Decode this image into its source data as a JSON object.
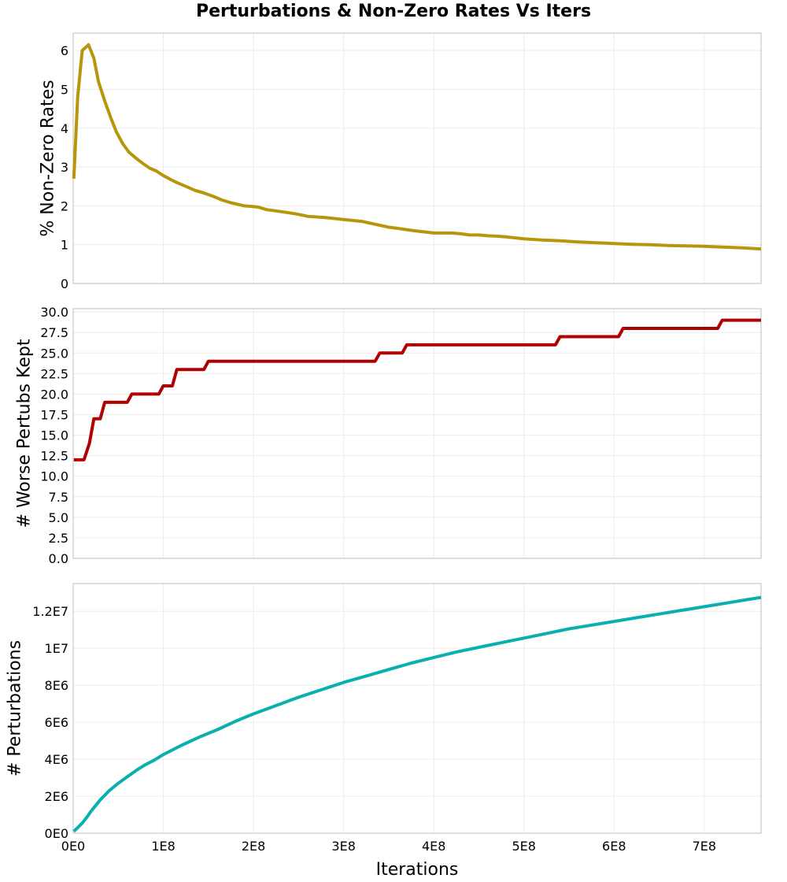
{
  "title": "Perturbations & Non-Zero Rates Vs Iters",
  "chart_data": [
    {
      "type": "line",
      "title": "Perturbations & Non-Zero Rates Vs Iters",
      "xlabel": "",
      "ylabel": "% Non-Zero Rates",
      "xlim": [
        0,
        763000000
      ],
      "ylim": [
        0,
        6.45
      ],
      "yticks": [
        0,
        1,
        2,
        3,
        4,
        5,
        6
      ],
      "ytick_labels": [
        "0",
        "1",
        "2",
        "3",
        "4",
        "5",
        "6"
      ],
      "xticks": [
        0,
        100000000,
        200000000,
        300000000,
        400000000,
        500000000,
        600000000,
        700000000
      ],
      "grid": true,
      "color": "#b8960c",
      "x": [
        700000,
        5000000,
        10000000,
        17000000,
        23000000,
        28000000,
        35000000,
        42000000,
        48000000,
        55000000,
        62000000,
        70000000,
        78000000,
        85000000,
        92000000,
        100000000,
        108000000,
        115000000,
        125000000,
        135000000,
        145000000,
        155000000,
        165000000,
        175000000,
        190000000,
        205000000,
        215000000,
        225000000,
        240000000,
        250000000,
        260000000,
        280000000,
        300000000,
        320000000,
        330000000,
        340000000,
        350000000,
        360000000,
        375000000,
        385000000,
        400000000,
        410000000,
        420000000,
        430000000,
        440000000,
        450000000,
        460000000,
        470000000,
        480000000,
        500000000,
        520000000,
        540000000,
        560000000,
        580000000,
        600000000,
        620000000,
        640000000,
        660000000,
        680000000,
        700000000,
        720000000,
        740000000,
        763000000
      ],
      "y": [
        2.7,
        4.8,
        6.0,
        6.15,
        5.8,
        5.2,
        4.7,
        4.25,
        3.9,
        3.6,
        3.38,
        3.22,
        3.08,
        2.97,
        2.9,
        2.78,
        2.68,
        2.6,
        2.5,
        2.4,
        2.33,
        2.25,
        2.15,
        2.08,
        2.0,
        1.97,
        1.9,
        1.87,
        1.82,
        1.78,
        1.73,
        1.7,
        1.65,
        1.6,
        1.55,
        1.5,
        1.45,
        1.42,
        1.37,
        1.34,
        1.3,
        1.3,
        1.3,
        1.28,
        1.25,
        1.25,
        1.23,
        1.22,
        1.2,
        1.15,
        1.12,
        1.1,
        1.07,
        1.05,
        1.03,
        1.01,
        1.0,
        0.98,
        0.97,
        0.96,
        0.94,
        0.92,
        0.89
      ]
    },
    {
      "type": "line",
      "xlabel": "",
      "ylabel": "# Worse Pertubs Kept",
      "xlim": [
        0,
        763000000
      ],
      "ylim": [
        0,
        30.4
      ],
      "yticks": [
        0,
        2.5,
        5,
        7.5,
        10,
        12.5,
        15,
        17.5,
        20,
        22.5,
        25,
        27.5,
        30
      ],
      "ytick_labels": [
        "0.0",
        "2.5",
        "5.0",
        "7.5",
        "10.0",
        "12.5",
        "15.0",
        "17.5",
        "20.0",
        "22.5",
        "25.0",
        "27.5",
        "30.0"
      ],
      "xticks": [
        0,
        100000000,
        200000000,
        300000000,
        400000000,
        500000000,
        600000000,
        700000000
      ],
      "grid": true,
      "color": "#b00000",
      "x": [
        700000,
        12000000,
        18000000,
        23000000,
        30000000,
        35000000,
        60000000,
        65000000,
        95000000,
        100000000,
        110000000,
        115000000,
        145000000,
        150000000,
        335000000,
        340000000,
        365000000,
        370000000,
        535000000,
        540000000,
        605000000,
        610000000,
        715000000,
        720000000,
        763000000
      ],
      "y": [
        12,
        12,
        14,
        17,
        17,
        19,
        19,
        20,
        20,
        21,
        21,
        23,
        23,
        24,
        24,
        25,
        25,
        26,
        26,
        27,
        27,
        28,
        28,
        29,
        29
      ]
    },
    {
      "type": "line",
      "xlabel": "Iterations",
      "ylabel": "# Perturbations",
      "xlim": [
        0,
        763000000
      ],
      "ylim": [
        0,
        13500000
      ],
      "yticks": [
        0,
        2000000,
        4000000,
        6000000,
        8000000,
        10000000,
        12000000
      ],
      "ytick_labels": [
        "0E0",
        "2E6",
        "4E6",
        "6E6",
        "8E6",
        "1E7",
        "1.2E7"
      ],
      "xticks": [
        0,
        100000000,
        200000000,
        300000000,
        400000000,
        500000000,
        600000000,
        700000000
      ],
      "xtick_labels": [
        "0E0",
        "1E8",
        "2E8",
        "3E8",
        "4E8",
        "5E8",
        "6E8",
        "7E8"
      ],
      "grid": true,
      "color": "#0aafaf",
      "x": [
        700000,
        5000000,
        10000000,
        15000000,
        20000000,
        25000000,
        30000000,
        40000000,
        50000000,
        60000000,
        70000000,
        80000000,
        90000000,
        100000000,
        120000000,
        140000000,
        160000000,
        180000000,
        200000000,
        225000000,
        250000000,
        275000000,
        300000000,
        325000000,
        350000000,
        375000000,
        400000000,
        425000000,
        450000000,
        475000000,
        500000000,
        525000000,
        550000000,
        575000000,
        600000000,
        625000000,
        650000000,
        675000000,
        700000000,
        725000000,
        750000000,
        763000000
      ],
      "y": [
        100000,
        300000,
        550000,
        850000,
        1200000,
        1500000,
        1800000,
        2300000,
        2700000,
        3050000,
        3400000,
        3700000,
        3950000,
        4250000,
        4750000,
        5200000,
        5600000,
        6050000,
        6450000,
        6900000,
        7350000,
        7750000,
        8150000,
        8500000,
        8850000,
        9200000,
        9500000,
        9800000,
        10050000,
        10300000,
        10550000,
        10800000,
        11050000,
        11250000,
        11450000,
        11650000,
        11850000,
        12050000,
        12250000,
        12450000,
        12650000,
        12750000
      ]
    }
  ]
}
